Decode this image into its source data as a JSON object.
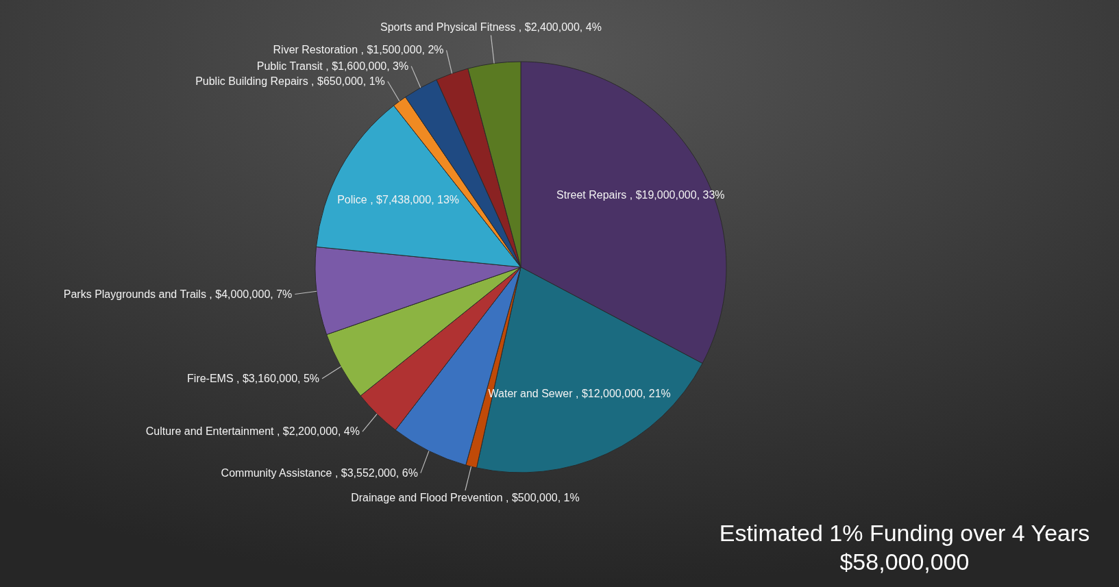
{
  "chart_data": {
    "type": "pie",
    "categories": [
      "Street Repairs",
      "Water and Sewer",
      "Drainage and Flood Prevention",
      "Community Assistance",
      "Culture and Entertainment",
      "Fire-EMS",
      "Parks Playgrounds and Trails",
      "Police",
      "Public Building Repairs",
      "Public Transit",
      "River Restoration",
      "Sports and Physical Fitness"
    ],
    "values": [
      19000000,
      12000000,
      500000,
      3552000,
      2200000,
      3160000,
      4000000,
      7438000,
      650000,
      1600000,
      1500000,
      2400000
    ],
    "colors": [
      "#4a3266",
      "#1b6b80",
      "#c04a08",
      "#3a72c0",
      "#b03232",
      "#8cb442",
      "#7a5aa8",
      "#32a8cc",
      "#f08a22",
      "#1f4a82",
      "#8a2222",
      "#5a7a22"
    ],
    "value_labels": [
      "$19,000,000, 33%",
      "$12,000,000, 21%",
      "$500,000, 1%",
      "$3,552,000, 6%",
      "$2,200,000, 4%",
      "$3,160,000, 5%",
      "$4,000,000, 7%",
      "$7,438,000, 13%",
      "$650,000, 1%",
      "$1,600,000, 3%",
      "$1,500,000, 2%",
      "$2,400,000, 4%"
    ],
    "annotations": [
      "Estimated 1% Funding over 4 Years",
      "$58,000,000"
    ]
  }
}
